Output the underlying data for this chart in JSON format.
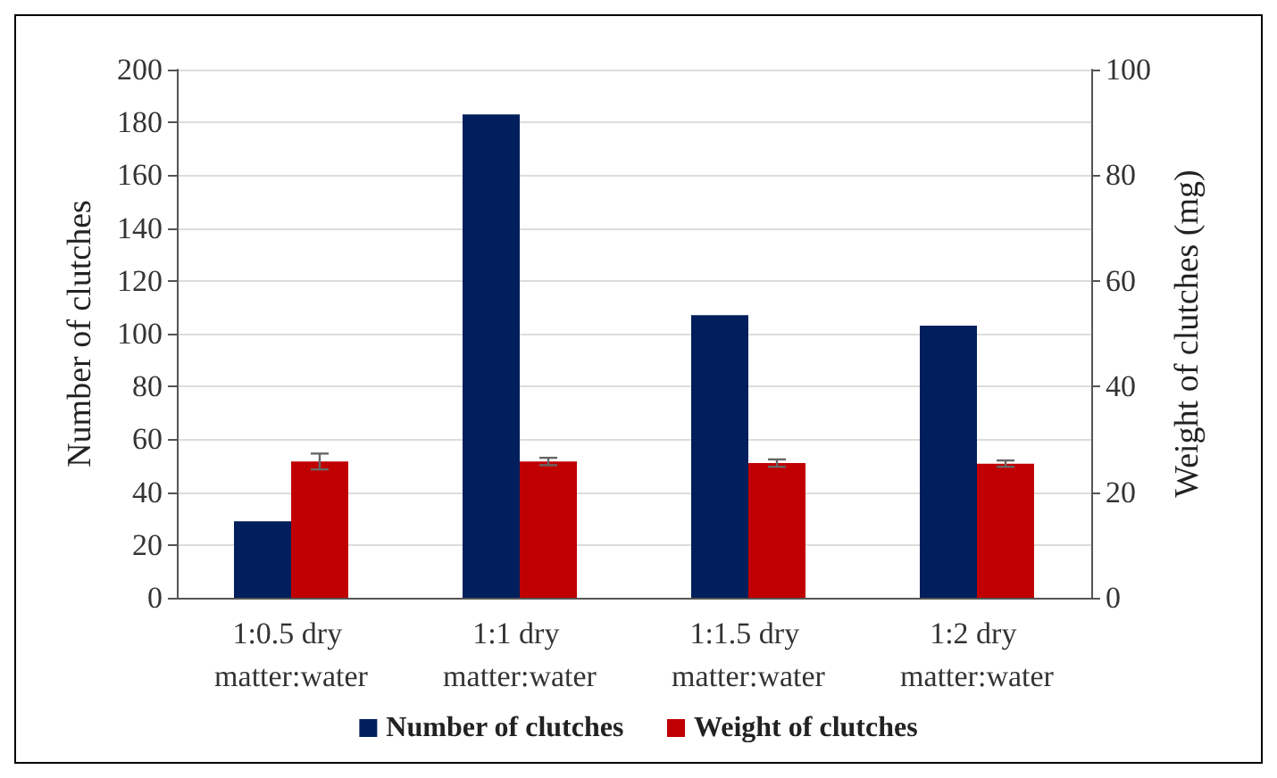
{
  "chart_data": {
    "type": "bar",
    "categories": [
      "1:0.5 dry matter:water",
      "1:1 dry matter:water",
      "1:1.5 dry matter:water",
      "1:2 dry matter:water"
    ],
    "ylabel": "Number of clutches",
    "y2label": "Weight of clutches (mg)",
    "series": [
      {
        "name": "Number of clutches",
        "color": "#001f5c",
        "values": [
          29,
          183,
          107,
          103
        ]
      },
      {
        "name": "Weight of clutches",
        "color": "#c00000",
        "axis": "y2",
        "values": [
          25.8,
          25.8,
          25.5,
          25.4
        ],
        "errors": [
          1.5,
          0.7,
          0.7,
          0.6
        ]
      }
    ],
    "ylim": [
      0,
      200
    ],
    "yticks": [
      0,
      20,
      40,
      60,
      80,
      100,
      120,
      140,
      160,
      180,
      200
    ],
    "y2lim": [
      0,
      100
    ],
    "y2ticks": [
      0,
      20,
      40,
      60,
      80,
      100
    ],
    "grid": "y",
    "legend": "bottom"
  }
}
